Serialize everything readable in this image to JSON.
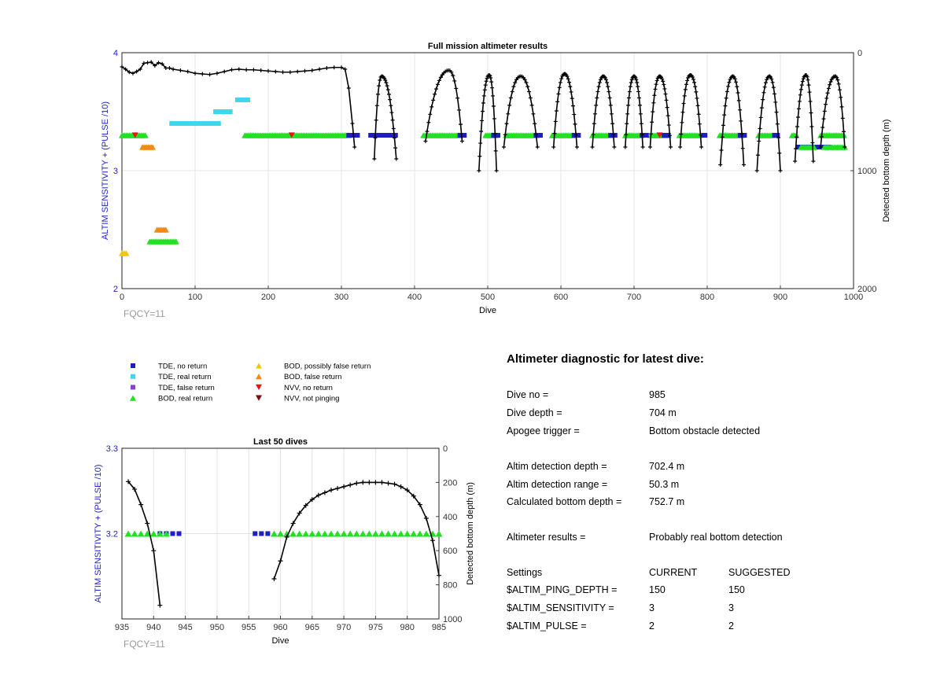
{
  "chart_data": [
    {
      "type": "scatter",
      "title": "Full mission altimeter results",
      "xlabel": "Dive",
      "ylabel_left": "ALTIM SENSITIVITY + (PULSE /10)",
      "ylabel_right": "Detected bottom depth (m)",
      "xlim": [
        0,
        1000
      ],
      "ylim_left": [
        2,
        4
      ],
      "ylim_right": [
        0,
        2000
      ],
      "right_axis_reversed": true,
      "xticks": [
        0,
        100,
        200,
        300,
        400,
        500,
        600,
        700,
        800,
        900,
        1000
      ],
      "yticks_left": [
        2,
        3,
        4
      ],
      "yticks_right": [
        0,
        1000,
        2000
      ],
      "grid": true,
      "footnote": "FQCY=11",
      "marker_bands": [
        {
          "series": "BOD, real return",
          "y": 3.3,
          "ranges": [
            [
              0,
              32
            ],
            [
              168,
              310
            ],
            [
              412,
              462
            ],
            [
              497,
              512
            ],
            [
              525,
              567
            ],
            [
              588,
              618
            ],
            [
              643,
              668
            ],
            [
              688,
              710
            ],
            [
              723,
              748
            ],
            [
              762,
              790
            ],
            [
              817,
              848
            ],
            [
              870,
              890
            ],
            [
              916,
              922
            ],
            [
              955,
              988
            ]
          ]
        },
        {
          "series": "TDE, no return",
          "y": 3.3,
          "ranges": [
            [
              310,
              322
            ],
            [
              340,
              375
            ],
            [
              462,
              468
            ],
            [
              508,
              515
            ],
            [
              566,
              572
            ],
            [
              618,
              624
            ],
            [
              668,
              674
            ],
            [
              711,
              717
            ],
            [
              741,
              747
            ],
            [
              795,
              798
            ],
            [
              845,
              852
            ],
            [
              892,
              897
            ]
          ]
        },
        {
          "series": "TDE, real return",
          "y": 3.4,
          "ranges": [
            [
              68,
              132
            ]
          ]
        },
        {
          "series": "TDE, real return",
          "y": 3.5,
          "ranges": [
            [
              128,
              148
            ]
          ]
        },
        {
          "series": "TDE, real return",
          "y": 3.6,
          "ranges": [
            [
              158,
              172
            ]
          ]
        },
        {
          "series": "BOD, false return",
          "y": 3.2,
          "ranges": [
            [
              28,
              42
            ]
          ]
        },
        {
          "series": "BOD, false return",
          "y": 2.5,
          "ranges": [
            [
              48,
              60
            ]
          ]
        },
        {
          "series": "BOD, real return",
          "y": 2.4,
          "ranges": [
            [
              38,
              75
            ]
          ]
        },
        {
          "series": "BOD, possibly false return",
          "y": 2.3,
          "ranges": [
            [
              0,
              6
            ]
          ]
        },
        {
          "series": "TDE, no return",
          "y": 3.2,
          "ranges": [
            [
              924,
              966
            ]
          ]
        },
        {
          "series": "BOD, real return",
          "y": 3.2,
          "ranges": [
            [
              928,
              946
            ],
            [
              960,
              988
            ]
          ]
        }
      ],
      "nvv_points": [
        {
          "series": "NVV, no return",
          "x": 18,
          "y": 3.3
        },
        {
          "series": "NVV, no return",
          "x": 232,
          "y": 3.3
        },
        {
          "series": "NVV, no return",
          "x": 735,
          "y": 3.3
        }
      ],
      "depth_early": [
        [
          0,
          120
        ],
        [
          5,
          140
        ],
        [
          10,
          165
        ],
        [
          15,
          175
        ],
        [
          20,
          160
        ],
        [
          25,
          140
        ],
        [
          30,
          90
        ],
        [
          35,
          85
        ],
        [
          40,
          80
        ],
        [
          45,
          110
        ],
        [
          50,
          85
        ],
        [
          55,
          95
        ],
        [
          60,
          130
        ],
        [
          65,
          130
        ],
        [
          70,
          140
        ],
        [
          80,
          150
        ],
        [
          90,
          160
        ],
        [
          100,
          175
        ],
        [
          110,
          180
        ],
        [
          120,
          185
        ],
        [
          130,
          175
        ],
        [
          140,
          160
        ],
        [
          150,
          145
        ],
        [
          160,
          140
        ],
        [
          170,
          145
        ],
        [
          180,
          145
        ],
        [
          190,
          150
        ],
        [
          200,
          155
        ],
        [
          210,
          160
        ],
        [
          220,
          165
        ],
        [
          230,
          165
        ],
        [
          240,
          160
        ],
        [
          250,
          155
        ],
        [
          260,
          150
        ],
        [
          270,
          140
        ],
        [
          280,
          130
        ],
        [
          290,
          125
        ],
        [
          300,
          125
        ],
        [
          305,
          140
        ],
        [
          310,
          300
        ],
        [
          315,
          600
        ],
        [
          318,
          800
        ]
      ],
      "dive_arches": [
        {
          "start": 345,
          "peak": 355,
          "end": 375,
          "min_depth": 200,
          "max_depth": 900
        },
        {
          "start": 415,
          "peak": 447,
          "end": 465,
          "min_depth": 150,
          "max_depth": 750
        },
        {
          "start": 488,
          "peak": 502,
          "end": 512,
          "min_depth": 190,
          "max_depth": 1000
        },
        {
          "start": 522,
          "peak": 545,
          "end": 568,
          "min_depth": 200,
          "max_depth": 800
        },
        {
          "start": 590,
          "peak": 605,
          "end": 622,
          "min_depth": 180,
          "max_depth": 800
        },
        {
          "start": 643,
          "peak": 658,
          "end": 673,
          "min_depth": 200,
          "max_depth": 800
        },
        {
          "start": 688,
          "peak": 700,
          "end": 712,
          "min_depth": 200,
          "max_depth": 800
        },
        {
          "start": 722,
          "peak": 735,
          "end": 750,
          "min_depth": 200,
          "max_depth": 800
        },
        {
          "start": 763,
          "peak": 777,
          "end": 792,
          "min_depth": 190,
          "max_depth": 800
        },
        {
          "start": 818,
          "peak": 835,
          "end": 850,
          "min_depth": 200,
          "max_depth": 950
        },
        {
          "start": 868,
          "peak": 885,
          "end": 900,
          "min_depth": 200,
          "max_depth": 1000
        },
        {
          "start": 920,
          "peak": 935,
          "end": 945,
          "min_depth": 190,
          "max_depth": 920
        },
        {
          "start": 955,
          "peak": 975,
          "end": 988,
          "min_depth": 200,
          "max_depth": 800
        }
      ]
    },
    {
      "type": "scatter",
      "title": "Last 50 dives",
      "xlabel": "Dive",
      "ylabel_left": "ALTIM SENSITIVITY + (PULSE /10)",
      "ylabel_right": "Detected bottom depth (m)",
      "xlim": [
        935,
        985
      ],
      "ylim_left": [
        3.1,
        3.3
      ],
      "left_axis_range_approx": [
        3.1,
        3.3
      ],
      "ylim_right": [
        0,
        1000
      ],
      "right_axis_reversed": true,
      "xticks": [
        935,
        940,
        945,
        950,
        955,
        960,
        965,
        970,
        975,
        980,
        985
      ],
      "yticks_left": [
        3.2,
        3.3
      ],
      "yticks_right": [
        0,
        200,
        400,
        600,
        800,
        1000
      ],
      "grid": true,
      "footnote": "FQCY=11",
      "bod_real_x": [
        936,
        937,
        938,
        939,
        940,
        941,
        942,
        959,
        960,
        961,
        962,
        963,
        964,
        965,
        966,
        967,
        968,
        969,
        970,
        971,
        972,
        973,
        974,
        975,
        976,
        977,
        978,
        979,
        980,
        981,
        982,
        983,
        984,
        985
      ],
      "bod_real_y": 3.2,
      "tde_no_return_x": [
        941,
        942,
        943,
        944,
        956,
        957,
        958
      ],
      "tde_no_return_y": 3.2,
      "depth_points": [
        {
          "x": 936,
          "y": 195
        },
        {
          "x": 937,
          "y": 240
        },
        {
          "x": 938,
          "y": 330
        },
        {
          "x": 939,
          "y": 440
        },
        {
          "x": 940,
          "y": 600
        },
        {
          "x": 941,
          "y": 920
        },
        {
          "x": 959,
          "y": 765
        },
        {
          "x": 960,
          "y": 660
        },
        {
          "x": 961,
          "y": 520
        },
        {
          "x": 962,
          "y": 440
        },
        {
          "x": 963,
          "y": 380
        },
        {
          "x": 964,
          "y": 335
        },
        {
          "x": 965,
          "y": 300
        },
        {
          "x": 966,
          "y": 275
        },
        {
          "x": 967,
          "y": 260
        },
        {
          "x": 968,
          "y": 245
        },
        {
          "x": 969,
          "y": 235
        },
        {
          "x": 970,
          "y": 225
        },
        {
          "x": 971,
          "y": 215
        },
        {
          "x": 972,
          "y": 205
        },
        {
          "x": 973,
          "y": 200
        },
        {
          "x": 974,
          "y": 200
        },
        {
          "x": 975,
          "y": 200
        },
        {
          "x": 976,
          "y": 200
        },
        {
          "x": 977,
          "y": 205
        },
        {
          "x": 978,
          "y": 210
        },
        {
          "x": 979,
          "y": 225
        },
        {
          "x": 980,
          "y": 245
        },
        {
          "x": 981,
          "y": 280
        },
        {
          "x": 982,
          "y": 330
        },
        {
          "x": 983,
          "y": 410
        },
        {
          "x": 984,
          "y": 540
        },
        {
          "x": 985,
          "y": 745
        }
      ]
    }
  ],
  "legend": {
    "items": [
      {
        "label": "TDE, no return",
        "marker": "square",
        "color": "#1f1fbf"
      },
      {
        "label": "TDE, real return",
        "marker": "square",
        "color": "#40d6f0"
      },
      {
        "label": "TDE, false return",
        "marker": "square",
        "color": "#8a3fd1"
      },
      {
        "label": "BOD, real return",
        "marker": "triangle-up",
        "color": "#22e022"
      },
      {
        "label": "BOD, possibly false return",
        "marker": "triangle-up",
        "color": "#f2c712"
      },
      {
        "label": "BOD, false return",
        "marker": "triangle-up",
        "color": "#f28a12"
      },
      {
        "label": "NVV, no return",
        "marker": "triangle-down",
        "color": "#e01818"
      },
      {
        "label": "NVV, not pinging",
        "marker": "triangle-down",
        "color": "#7a0c0c"
      }
    ]
  },
  "colors": {
    "axis_label_blue": "#2323c8",
    "depth_line": "#000000",
    "grid": "#e4e4e4",
    "footnote": "#9a9a9a"
  },
  "diagnostic": {
    "title": "Altimeter diagnostic for latest dive:",
    "rows": [
      {
        "label": "Dive no =",
        "value": "985"
      },
      {
        "label": "Dive depth =",
        "value": "704 m"
      },
      {
        "label": "Apogee trigger =",
        "value": "Bottom obstacle detected"
      },
      {
        "label": "Altim detection depth =",
        "value": "702.4 m"
      },
      {
        "label": "Altim detection range =",
        "value": "50.3 m"
      },
      {
        "label": "Calculated bottom depth =",
        "value": "752.7 m"
      },
      {
        "label": "Altimeter results =",
        "value": "Probably real bottom detection"
      }
    ],
    "settings": {
      "header": {
        "label": "Settings",
        "current": "CURRENT",
        "suggested": "SUGGESTED"
      },
      "rows": [
        {
          "label": "$ALTIM_PING_DEPTH =",
          "current": "150",
          "suggested": "150"
        },
        {
          "label": "$ALTIM_SENSITIVITY =",
          "current": "3",
          "suggested": "3"
        },
        {
          "label": "$ALTIM_PULSE =",
          "current": "2",
          "suggested": "2"
        }
      ]
    }
  }
}
